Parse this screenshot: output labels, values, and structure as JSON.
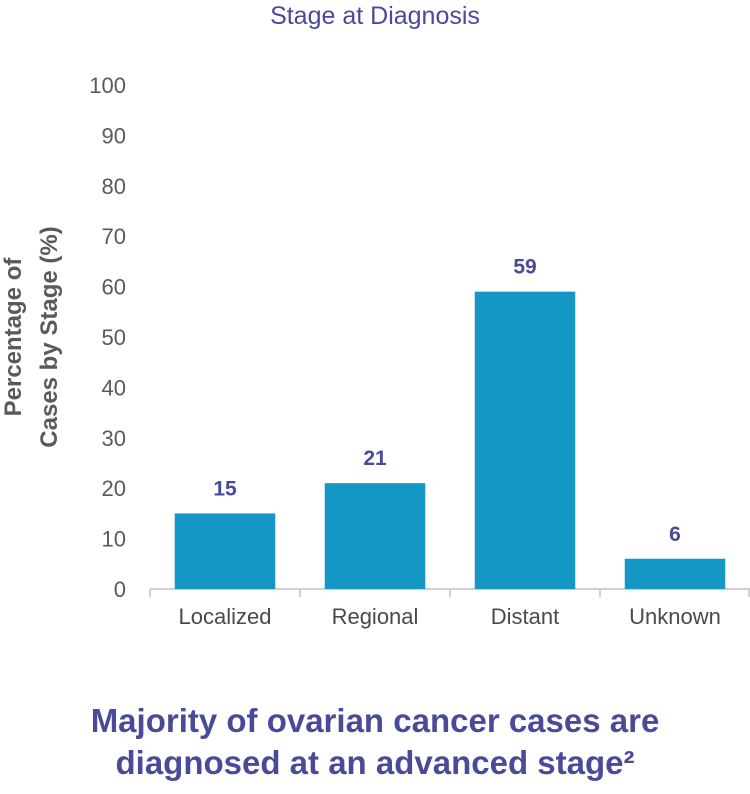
{
  "chart_data": {
    "type": "bar",
    "title": "Stage at Diagnosis",
    "ylabel_lines": [
      "Percentage of",
      "Cases by Stage (%)"
    ],
    "xlabel": "",
    "categories": [
      "Localized",
      "Regional",
      "Distant",
      "Unknown"
    ],
    "values": [
      15,
      21,
      59,
      6
    ],
    "data_labels": [
      "15",
      "21",
      "59",
      "6"
    ],
    "ylim": [
      0,
      100
    ],
    "yticks": [
      0,
      10,
      20,
      30,
      40,
      50,
      60,
      70,
      80,
      90,
      100
    ],
    "grid": false,
    "legend": "none",
    "bar_color": "#1497c4"
  },
  "caption": {
    "line1": "Majority of ovarian cancer cases are",
    "line2": "diagnosed at an advanced stage²"
  }
}
